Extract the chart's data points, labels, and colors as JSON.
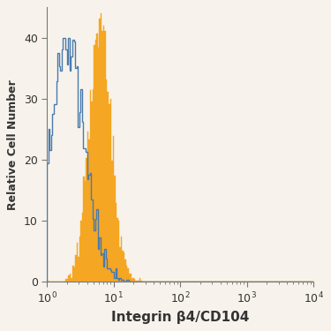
{
  "title": "",
  "xlabel": "Integrin β4/CD104",
  "ylabel": "Relative Cell Number",
  "xlim_log": [
    0,
    4
  ],
  "ylim": [
    0,
    45
  ],
  "yticks": [
    0,
    10,
    20,
    30,
    40
  ],
  "background_color": "#f7f3ec",
  "blue_color": "#4a7aad",
  "orange_color": "#f5a623",
  "orange_edge_color": "#c8841a",
  "blue_mean_log": 0.7,
  "blue_sigma": 0.6,
  "blue_n": 4000,
  "orange_mean_log": 1.82,
  "orange_sigma": 0.38,
  "orange_n": 4000,
  "n_bins": 200,
  "blue_peak_target": 40,
  "orange_peak_target": 44
}
